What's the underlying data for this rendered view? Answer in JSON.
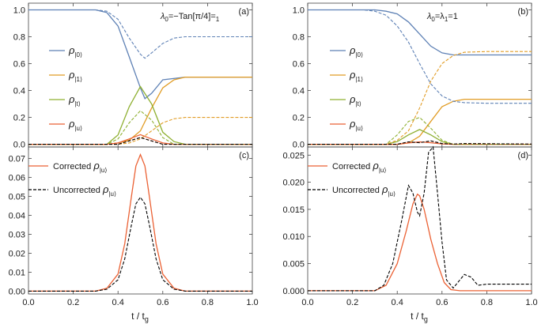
{
  "colors": {
    "rho0": "#5E81B5",
    "rho1": "#E19C24",
    "rhot": "#8FB032",
    "rhou": "#EB6235",
    "black": "#000000",
    "frame": "#444444"
  },
  "xlabel": "t / t",
  "xlabel_sub": "g",
  "chart_data": [
    {
      "panel": "(a)",
      "type": "line",
      "title": "λ0=−Tan[π/4]=λ1",
      "title_parts": {
        "sym": "λ",
        "sub0": "0",
        "mid": "=−Tan[π/4]=",
        "sub1": "1"
      },
      "xlim": [
        0,
        1
      ],
      "ylim": [
        -0.02,
        1.05
      ],
      "xticks": [
        "0.0",
        "0.2",
        "0.4",
        "0.6",
        "0.8",
        "1.0"
      ],
      "yticks": [
        "0.0",
        "0.2",
        "0.4",
        "0.6",
        "0.8",
        "1.0"
      ],
      "legend": [
        "ρ|0⟩",
        "ρ|1⟩",
        "ρ|t⟩",
        "ρ|u⟩"
      ],
      "legend_subs": [
        "|0⟩",
        "|1⟩",
        "|t⟩",
        "|u⟩"
      ],
      "legend_placement": "center-left",
      "series": [
        {
          "key": "rho0",
          "style": "solid",
          "x": [
            0,
            0.3,
            0.35,
            0.4,
            0.45,
            0.5,
            0.52,
            0.55,
            0.6,
            0.7,
            1.0
          ],
          "y": [
            1.0,
            1.0,
            0.98,
            0.88,
            0.65,
            0.42,
            0.34,
            0.38,
            0.48,
            0.5,
            0.5
          ]
        },
        {
          "key": "rho1",
          "style": "solid",
          "x": [
            0,
            0.35,
            0.4,
            0.45,
            0.5,
            0.55,
            0.6,
            0.65,
            0.7,
            0.8,
            1.0
          ],
          "y": [
            0,
            0,
            0.01,
            0.03,
            0.1,
            0.27,
            0.42,
            0.48,
            0.5,
            0.5,
            0.5
          ]
        },
        {
          "key": "rhot",
          "style": "solid",
          "x": [
            0,
            0.35,
            0.4,
            0.45,
            0.5,
            0.55,
            0.6,
            0.65,
            0.7,
            1.0
          ],
          "y": [
            0,
            0,
            0.07,
            0.28,
            0.43,
            0.3,
            0.09,
            0.02,
            0,
            0
          ]
        },
        {
          "key": "rhou",
          "style": "solid",
          "x": [
            0,
            0.35,
            0.4,
            0.45,
            0.5,
            0.55,
            0.6,
            0.65,
            1.0
          ],
          "y": [
            0,
            0,
            0.01,
            0.04,
            0.072,
            0.04,
            0.01,
            0,
            0
          ]
        },
        {
          "key": "rho0",
          "style": "dashed",
          "x": [
            0,
            0.3,
            0.35,
            0.4,
            0.45,
            0.5,
            0.52,
            0.55,
            0.6,
            0.65,
            0.7,
            1.0
          ],
          "y": [
            1.0,
            1.0,
            0.99,
            0.93,
            0.79,
            0.67,
            0.64,
            0.68,
            0.75,
            0.79,
            0.8,
            0.8
          ]
        },
        {
          "key": "rho1",
          "style": "dashed",
          "x": [
            0,
            0.4,
            0.45,
            0.5,
            0.55,
            0.6,
            0.65,
            0.7,
            0.8,
            1.0
          ],
          "y": [
            0,
            0,
            0.01,
            0.04,
            0.1,
            0.16,
            0.19,
            0.2,
            0.2,
            0.2
          ]
        },
        {
          "key": "rhot",
          "style": "dashed",
          "x": [
            0,
            0.35,
            0.4,
            0.45,
            0.5,
            0.55,
            0.6,
            0.65,
            1.0
          ],
          "y": [
            0,
            0,
            0.04,
            0.16,
            0.25,
            0.18,
            0.05,
            0,
            0
          ]
        },
        {
          "key": "rhou",
          "style": "dashed",
          "x": [
            0,
            0.4,
            0.45,
            0.5,
            0.55,
            0.6,
            1.0
          ],
          "y": [
            0,
            0,
            0.025,
            0.05,
            0.025,
            0,
            0
          ]
        },
        {
          "key": "black",
          "style": "dashed",
          "x": [
            0,
            0.4,
            0.45,
            0.5,
            0.55,
            0.6,
            1.0
          ],
          "y": [
            0,
            0,
            0.025,
            0.05,
            0.025,
            0,
            0
          ]
        }
      ]
    },
    {
      "panel": "(b)",
      "type": "line",
      "title": "λ0=λ1=1",
      "title_parts": {
        "sym": "λ",
        "sub0": "0",
        "mid": "=λ",
        "sub1": "1",
        "tail": "=1"
      },
      "xlim": [
        0,
        1
      ],
      "ylim": [
        -0.02,
        1.05
      ],
      "xticks": [
        "0.0",
        "0.2",
        "0.4",
        "0.6",
        "0.8",
        "1.0"
      ],
      "yticks": [
        "0.0",
        "0.2",
        "0.4",
        "0.6",
        "0.8",
        "1.0"
      ],
      "legend": [
        "ρ|0⟩",
        "ρ|1⟩",
        "ρ|t⟩",
        "ρ|u⟩"
      ],
      "legend_subs": [
        "|0⟩",
        "|1⟩",
        "|t⟩",
        "|u⟩"
      ],
      "legend_placement": "center",
      "series": [
        {
          "key": "rho0",
          "style": "solid",
          "x": [
            0,
            0.3,
            0.35,
            0.4,
            0.45,
            0.5,
            0.55,
            0.6,
            0.65,
            0.7,
            1.0
          ],
          "y": [
            1.0,
            1.0,
            0.99,
            0.97,
            0.91,
            0.82,
            0.73,
            0.68,
            0.665,
            0.665,
            0.665
          ]
        },
        {
          "key": "rho1",
          "style": "solid",
          "x": [
            0,
            0.4,
            0.45,
            0.5,
            0.55,
            0.6,
            0.65,
            0.7,
            0.8,
            1.0
          ],
          "y": [
            0,
            0,
            0.01,
            0.06,
            0.17,
            0.28,
            0.32,
            0.335,
            0.335,
            0.335
          ]
        },
        {
          "key": "rhot",
          "style": "solid",
          "x": [
            0,
            0.35,
            0.4,
            0.45,
            0.5,
            0.55,
            0.6,
            0.65,
            1.0
          ],
          "y": [
            0,
            0,
            0.02,
            0.07,
            0.11,
            0.07,
            0.02,
            0,
            0
          ]
        },
        {
          "key": "rhou",
          "style": "solid",
          "x": [
            0,
            0.4,
            0.45,
            0.5,
            0.55,
            0.6,
            0.65,
            1.0
          ],
          "y": [
            0,
            0,
            0.01,
            0.018,
            0.012,
            0.003,
            0,
            0
          ]
        },
        {
          "key": "rho0",
          "style": "dashed",
          "x": [
            0,
            0.25,
            0.3,
            0.35,
            0.4,
            0.45,
            0.5,
            0.55,
            0.6,
            0.65,
            0.7,
            0.8,
            1.0
          ],
          "y": [
            1.0,
            1.0,
            0.99,
            0.96,
            0.88,
            0.76,
            0.6,
            0.45,
            0.36,
            0.32,
            0.31,
            0.305,
            0.305
          ]
        },
        {
          "key": "rho1",
          "style": "dashed",
          "x": [
            0,
            0.35,
            0.4,
            0.45,
            0.5,
            0.55,
            0.6,
            0.65,
            0.7,
            0.8,
            1.0
          ],
          "y": [
            0,
            0,
            0.03,
            0.1,
            0.27,
            0.47,
            0.6,
            0.66,
            0.685,
            0.69,
            0.69
          ]
        },
        {
          "key": "rhot",
          "style": "dashed",
          "x": [
            0,
            0.35,
            0.4,
            0.45,
            0.5,
            0.55,
            0.6,
            0.65,
            1.0
          ],
          "y": [
            0,
            0,
            0.07,
            0.17,
            0.2,
            0.12,
            0.03,
            0,
            0
          ]
        },
        {
          "key": "rhou",
          "style": "dashed",
          "x": [
            0,
            0.4,
            0.45,
            0.5,
            0.55,
            0.6,
            0.65,
            0.7,
            1.0
          ],
          "y": [
            0,
            0,
            0.018,
            0.012,
            0.025,
            0.005,
            0.002,
            0.005,
            0.002
          ]
        },
        {
          "key": "black",
          "style": "dashed",
          "x": [
            0,
            0.4,
            0.45,
            0.5,
            0.55,
            0.6,
            0.65,
            0.7,
            1.0
          ],
          "y": [
            0,
            0,
            0.018,
            0.012,
            0.025,
            0.005,
            0.002,
            0.005,
            0.002
          ]
        }
      ]
    },
    {
      "panel": "(c)",
      "type": "line",
      "xlim": [
        0,
        1
      ],
      "ylim": [
        -0.0015,
        0.076
      ],
      "xticks": [
        "0.0",
        "0.2",
        "0.4",
        "0.6",
        "0.8",
        "1.0"
      ],
      "yticks": [
        "0.00",
        "0.01",
        "0.02",
        "0.03",
        "0.04",
        "0.05",
        "0.06",
        "0.07"
      ],
      "legend": [
        "Corrected ρ|u⟩",
        "Uncorrected ρ|u⟩"
      ],
      "legend_placement": "top-left",
      "series": [
        {
          "name": "Corrected ρ|u⟩",
          "key": "rhou",
          "style": "solid",
          "x": [
            0,
            0.3,
            0.35,
            0.4,
            0.43,
            0.46,
            0.48,
            0.5,
            0.52,
            0.54,
            0.57,
            0.6,
            0.65,
            0.7,
            1.0
          ],
          "y": [
            0,
            0,
            0.0015,
            0.009,
            0.025,
            0.05,
            0.066,
            0.072,
            0.066,
            0.05,
            0.025,
            0.009,
            0.0015,
            0,
            0
          ]
        },
        {
          "name": "Uncorrected ρ|u⟩",
          "key": "black",
          "style": "dashed",
          "x": [
            0,
            0.3,
            0.35,
            0.4,
            0.43,
            0.46,
            0.48,
            0.5,
            0.52,
            0.54,
            0.57,
            0.6,
            0.65,
            0.7,
            1.0
          ],
          "y": [
            0,
            0,
            0.001,
            0.006,
            0.017,
            0.035,
            0.046,
            0.0495,
            0.046,
            0.035,
            0.017,
            0.006,
            0.001,
            0,
            0
          ]
        }
      ]
    },
    {
      "panel": "(d)",
      "type": "line",
      "xlim": [
        0,
        1
      ],
      "ylim": [
        -0.0006,
        0.0265
      ],
      "xticks": [
        "0.0",
        "0.2",
        "0.4",
        "0.6",
        "0.8",
        "1.0"
      ],
      "yticks": [
        "0.000",
        "0.005",
        "0.010",
        "0.015",
        "0.020",
        "0.025"
      ],
      "legend": [
        "Corrected ρ|u⟩",
        "Uncorrected ρ|u⟩"
      ],
      "legend_placement": "top-left",
      "series": [
        {
          "name": "Corrected ρ|u⟩",
          "key": "rhou",
          "style": "solid",
          "x": [
            0,
            0.3,
            0.35,
            0.4,
            0.44,
            0.47,
            0.49,
            0.5,
            0.52,
            0.55,
            0.58,
            0.61,
            0.64,
            0.68,
            0.72,
            1.0
          ],
          "y": [
            0,
            0,
            0.001,
            0.005,
            0.011,
            0.016,
            0.0178,
            0.0175,
            0.015,
            0.0095,
            0.005,
            0.0015,
            0.0002,
            0,
            0,
            0
          ]
        },
        {
          "name": "Uncorrected ρ|u⟩",
          "key": "black",
          "style": "dashed",
          "x": [
            0,
            0.3,
            0.34,
            0.38,
            0.42,
            0.45,
            0.47,
            0.49,
            0.5,
            0.52,
            0.54,
            0.56,
            0.58,
            0.6,
            0.62,
            0.65,
            0.68,
            0.7,
            0.73,
            0.76,
            0.8,
            0.85,
            0.9,
            1.0
          ],
          "y": [
            0,
            0,
            0.001,
            0.005,
            0.013,
            0.0194,
            0.018,
            0.0145,
            0.0138,
            0.018,
            0.0255,
            0.0265,
            0.018,
            0.009,
            0.002,
            0.0005,
            0.002,
            0.003,
            0.0025,
            0.001,
            0.0012,
            0.0012,
            0.0012,
            0.0012
          ]
        }
      ]
    }
  ]
}
